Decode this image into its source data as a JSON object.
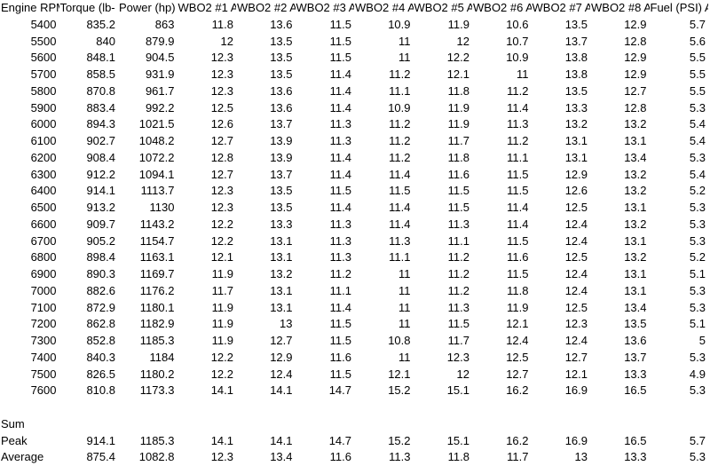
{
  "table": {
    "headers": [
      "Engine RPM",
      "Torque (lb-",
      "Power (hp)",
      "WBO2 #1 A",
      "WBO2 #2 A",
      "WBO2 #3 A",
      "WBO2 #4 A",
      "WBO2 #5 A",
      "WBO2 #6 A",
      "WBO2 #7 A",
      "WBO2 #8 A",
      "Fuel (PSI) A"
    ],
    "rows": [
      [
        5400,
        835.2,
        863,
        11.8,
        13.6,
        11.5,
        10.9,
        11.9,
        10.6,
        13.5,
        12.9,
        5.7
      ],
      [
        5500,
        840,
        879.9,
        12,
        13.5,
        11.5,
        11,
        12,
        10.7,
        13.7,
        12.8,
        5.6
      ],
      [
        5600,
        848.1,
        904.5,
        12.3,
        13.5,
        11.5,
        11,
        12.2,
        10.9,
        13.8,
        12.9,
        5.5
      ],
      [
        5700,
        858.5,
        931.9,
        12.3,
        13.5,
        11.4,
        11.2,
        12.1,
        11,
        13.8,
        12.9,
        5.5
      ],
      [
        5800,
        870.8,
        961.7,
        12.3,
        13.6,
        11.4,
        11.1,
        11.8,
        11.2,
        13.5,
        12.7,
        5.5
      ],
      [
        5900,
        883.4,
        992.2,
        12.5,
        13.6,
        11.4,
        10.9,
        11.9,
        11.4,
        13.3,
        12.8,
        5.3
      ],
      [
        6000,
        894.3,
        1021.5,
        12.6,
        13.7,
        11.3,
        11.2,
        11.9,
        11.3,
        13.2,
        13.2,
        5.4
      ],
      [
        6100,
        902.7,
        1048.2,
        12.7,
        13.9,
        11.3,
        11.2,
        11.7,
        11.2,
        13.1,
        13.1,
        5.4
      ],
      [
        6200,
        908.4,
        1072.2,
        12.8,
        13.9,
        11.4,
        11.2,
        11.8,
        11.1,
        13.1,
        13.4,
        5.3
      ],
      [
        6300,
        912.2,
        1094.1,
        12.7,
        13.7,
        11.4,
        11.4,
        11.6,
        11.5,
        12.9,
        13.2,
        5.4
      ],
      [
        6400,
        914.1,
        1113.7,
        12.3,
        13.5,
        11.5,
        11.5,
        11.5,
        11.5,
        12.6,
        13.2,
        5.2
      ],
      [
        6500,
        913.2,
        1130,
        12.3,
        13.5,
        11.4,
        11.4,
        11.5,
        11.4,
        12.5,
        13.1,
        5.3
      ],
      [
        6600,
        909.7,
        1143.2,
        12.2,
        13.3,
        11.3,
        11.4,
        11.3,
        11.4,
        12.4,
        13.2,
        5.3
      ],
      [
        6700,
        905.2,
        1154.7,
        12.2,
        13.1,
        11.3,
        11.3,
        11.1,
        11.5,
        12.4,
        13.1,
        5.3
      ],
      [
        6800,
        898.4,
        1163.1,
        12.1,
        13.1,
        11.3,
        11.1,
        11.2,
        11.6,
        12.5,
        13.2,
        5.2
      ],
      [
        6900,
        890.3,
        1169.7,
        11.9,
        13.2,
        11.2,
        11,
        11.2,
        11.5,
        12.4,
        13.1,
        5.1
      ],
      [
        7000,
        882.6,
        1176.2,
        11.7,
        13.1,
        11.1,
        11,
        11.2,
        11.8,
        12.4,
        13.1,
        5.3
      ],
      [
        7100,
        872.9,
        1180.1,
        11.9,
        13.1,
        11.4,
        11,
        11.3,
        11.9,
        12.5,
        13.4,
        5.3
      ],
      [
        7200,
        862.8,
        1182.9,
        11.9,
        13,
        11.5,
        11,
        11.5,
        12.1,
        12.3,
        13.5,
        5.1
      ],
      [
        7300,
        852.8,
        1185.3,
        11.9,
        12.7,
        11.5,
        10.8,
        11.7,
        12.4,
        12.4,
        13.6,
        5
      ],
      [
        7400,
        840.3,
        1184,
        12.2,
        12.9,
        11.6,
        11,
        12.3,
        12.5,
        12.7,
        13.7,
        5.3
      ],
      [
        7500,
        826.5,
        1180.2,
        12.2,
        12.4,
        11.5,
        12.1,
        12,
        12.7,
        12.1,
        13.3,
        4.9
      ],
      [
        7600,
        810.8,
        1173.3,
        14.1,
        14.1,
        14.7,
        15.2,
        15.1,
        16.2,
        16.9,
        16.5,
        5.3
      ]
    ],
    "summary": [
      {
        "label": "Sum"
      },
      {
        "label": "Peak",
        "values": [
          914.1,
          1185.3,
          14.1,
          14.1,
          14.7,
          15.2,
          15.1,
          16.2,
          16.9,
          16.5,
          5.7
        ]
      },
      {
        "label": "Average",
        "values": [
          875.4,
          1082.8,
          12.3,
          13.4,
          11.6,
          11.3,
          11.8,
          11.7,
          13,
          13.3,
          5.3
        ]
      }
    ]
  }
}
